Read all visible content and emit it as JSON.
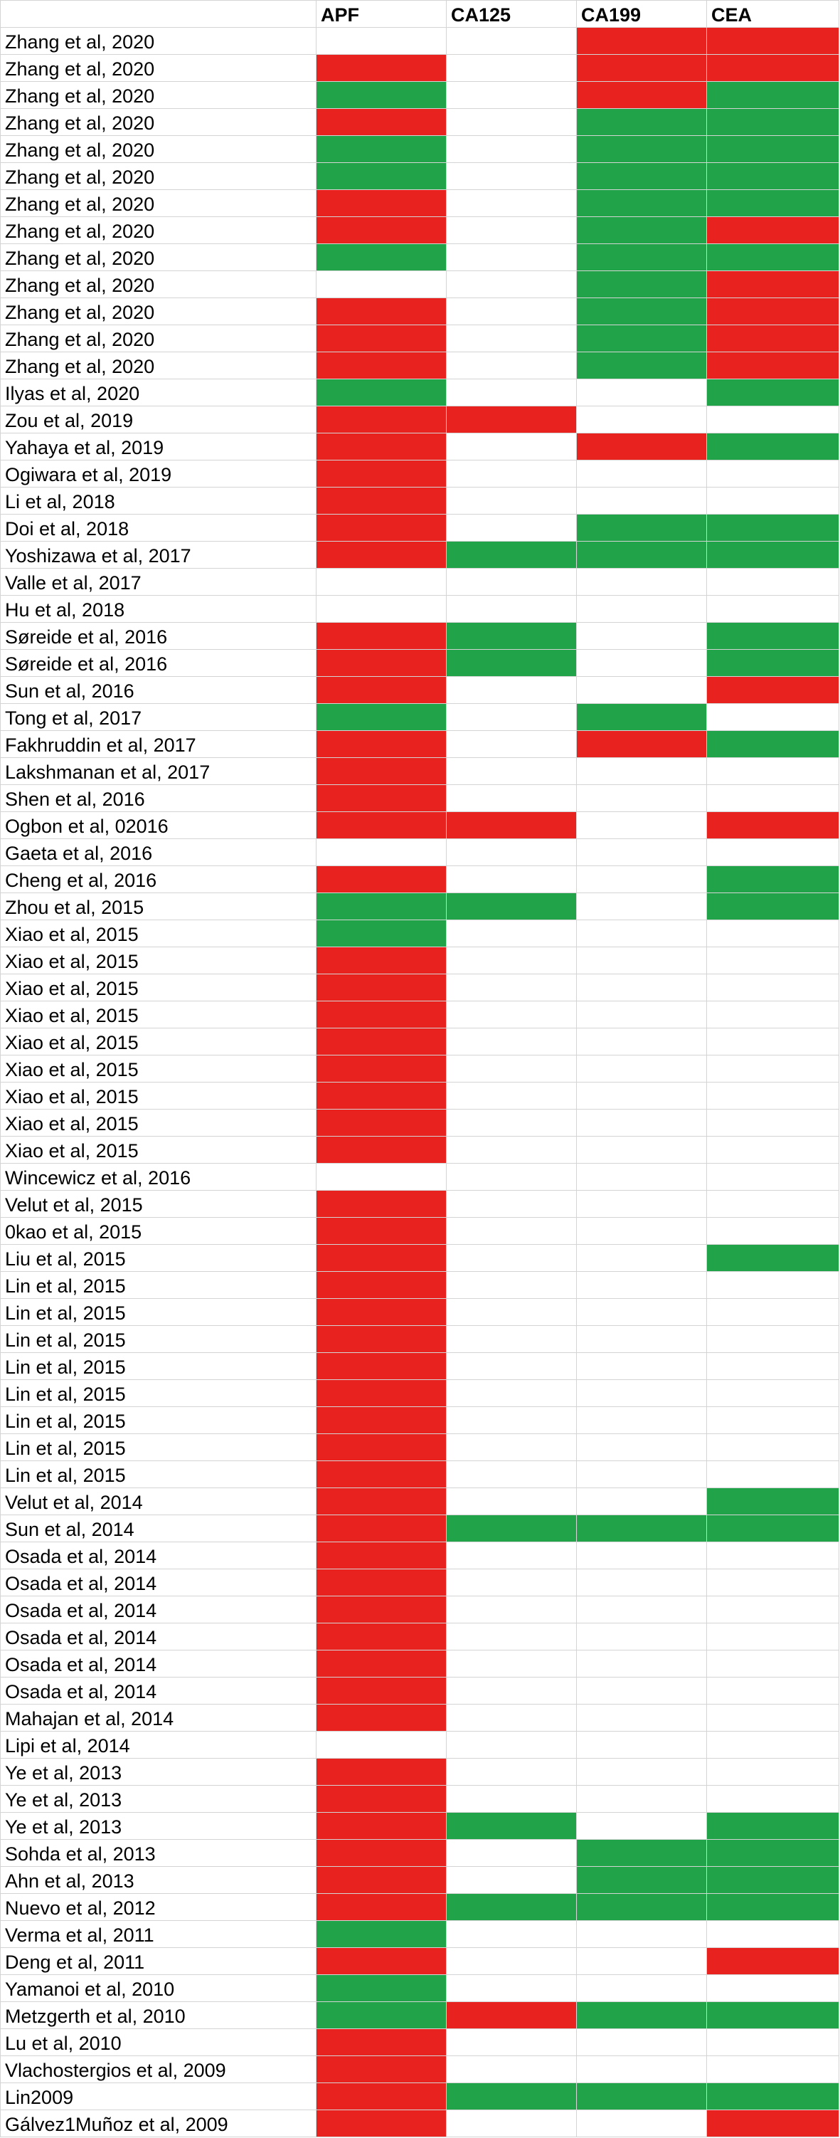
{
  "headers": [
    "",
    "APF",
    "CA125",
    "CA199",
    "CEA"
  ],
  "colors": {
    "positive": "#21a34a",
    "negative": "#e8221e",
    "none": "#ffffff"
  },
  "rows": [
    {
      "study": "Zhang et al, 2020",
      "cells": [
        "w",
        "w",
        "r",
        "r"
      ]
    },
    {
      "study": "Zhang et al, 2020",
      "cells": [
        "r",
        "w",
        "r",
        "r"
      ]
    },
    {
      "study": "Zhang et al, 2020",
      "cells": [
        "g",
        "w",
        "r",
        "g"
      ]
    },
    {
      "study": "Zhang et al, 2020",
      "cells": [
        "r",
        "w",
        "g",
        "g"
      ]
    },
    {
      "study": "Zhang et al, 2020",
      "cells": [
        "g",
        "w",
        "g",
        "g"
      ]
    },
    {
      "study": "Zhang et al, 2020",
      "cells": [
        "g",
        "w",
        "g",
        "g"
      ]
    },
    {
      "study": "Zhang et al, 2020",
      "cells": [
        "r",
        "w",
        "g",
        "g"
      ]
    },
    {
      "study": "Zhang et al, 2020",
      "cells": [
        "r",
        "w",
        "g",
        "r"
      ]
    },
    {
      "study": "Zhang et al, 2020",
      "cells": [
        "g",
        "w",
        "g",
        "g"
      ]
    },
    {
      "study": "Zhang et al, 2020",
      "cells": [
        "w",
        "w",
        "g",
        "r"
      ]
    },
    {
      "study": "Zhang et al, 2020",
      "cells": [
        "r",
        "w",
        "g",
        "r"
      ]
    },
    {
      "study": "Zhang et al, 2020",
      "cells": [
        "r",
        "w",
        "g",
        "r"
      ]
    },
    {
      "study": "Zhang et al, 2020",
      "cells": [
        "r",
        "w",
        "g",
        "r"
      ]
    },
    {
      "study": "Ilyas et al, 2020",
      "cells": [
        "g",
        "w",
        "w",
        "g"
      ]
    },
    {
      "study": "Zou et al, 2019",
      "cells": [
        "r",
        "r",
        "w",
        "w"
      ]
    },
    {
      "study": "Yahaya et al, 2019",
      "cells": [
        "r",
        "w",
        "r",
        "g"
      ]
    },
    {
      "study": "Ogiwara et al, 2019",
      "cells": [
        "r",
        "w",
        "w",
        "w"
      ]
    },
    {
      "study": "Li et al, 2018",
      "cells": [
        "r",
        "w",
        "w",
        "w"
      ]
    },
    {
      "study": "Doi et al, 2018",
      "cells": [
        "r",
        "w",
        "g",
        "g"
      ]
    },
    {
      "study": "Yoshizawa et al, 2017",
      "cells": [
        "r",
        "g",
        "g",
        "g"
      ]
    },
    {
      "study": "Valle et al, 2017",
      "cells": [
        "w",
        "w",
        "w",
        "w"
      ]
    },
    {
      "study": "Hu et al, 2018",
      "cells": [
        "w",
        "w",
        "w",
        "w"
      ]
    },
    {
      "study": "Søreide et al, 2016",
      "cells": [
        "r",
        "g",
        "w",
        "g"
      ]
    },
    {
      "study": "Søreide et al, 2016",
      "cells": [
        "r",
        "g",
        "w",
        "g"
      ]
    },
    {
      "study": "Sun et al, 2016",
      "cells": [
        "r",
        "w",
        "w",
        "r"
      ]
    },
    {
      "study": "Tong et al, 2017",
      "cells": [
        "g",
        "w",
        "g",
        "w"
      ]
    },
    {
      "study": "Fakhruddin et al, 2017",
      "cells": [
        "r",
        "w",
        "r",
        "g"
      ]
    },
    {
      "study": "Lakshmanan et al, 2017",
      "cells": [
        "r",
        "w",
        "w",
        "w"
      ]
    },
    {
      "study": "Shen et al, 2016",
      "cells": [
        "r",
        "w",
        "w",
        "w"
      ]
    },
    {
      "study": "Ogbon et al, 02016",
      "cells": [
        "r",
        "r",
        "w",
        "r"
      ]
    },
    {
      "study": "Gaeta et al, 2016",
      "cells": [
        "w",
        "w",
        "w",
        "w"
      ]
    },
    {
      "study": "Cheng et al, 2016",
      "cells": [
        "r",
        "w",
        "w",
        "g"
      ]
    },
    {
      "study": "Zhou et al, 2015",
      "cells": [
        "g",
        "g",
        "w",
        "g"
      ]
    },
    {
      "study": "Xiao et al, 2015",
      "cells": [
        "g",
        "w",
        "w",
        "w"
      ]
    },
    {
      "study": "Xiao et al, 2015",
      "cells": [
        "r",
        "w",
        "w",
        "w"
      ]
    },
    {
      "study": "Xiao et al, 2015",
      "cells": [
        "r",
        "w",
        "w",
        "w"
      ]
    },
    {
      "study": "Xiao et al, 2015",
      "cells": [
        "r",
        "w",
        "w",
        "w"
      ]
    },
    {
      "study": "Xiao et al, 2015",
      "cells": [
        "r",
        "w",
        "w",
        "w"
      ]
    },
    {
      "study": "Xiao et al, 2015",
      "cells": [
        "r",
        "w",
        "w",
        "w"
      ]
    },
    {
      "study": "Xiao et al, 2015",
      "cells": [
        "r",
        "w",
        "w",
        "w"
      ]
    },
    {
      "study": "Xiao et al, 2015",
      "cells": [
        "r",
        "w",
        "w",
        "w"
      ]
    },
    {
      "study": "Xiao et al, 2015",
      "cells": [
        "r",
        "w",
        "w",
        "w"
      ]
    },
    {
      "study": "Wincewicz et al, 2016",
      "cells": [
        "w",
        "w",
        "w",
        "w"
      ]
    },
    {
      "study": "Velut et al, 2015",
      "cells": [
        "r",
        "w",
        "w",
        "w"
      ]
    },
    {
      "study": "0kao et al, 2015",
      "cells": [
        "r",
        "w",
        "w",
        "w"
      ]
    },
    {
      "study": "Liu et al, 2015",
      "cells": [
        "r",
        "w",
        "w",
        "g"
      ]
    },
    {
      "study": "Lin et al, 2015",
      "cells": [
        "r",
        "w",
        "w",
        "w"
      ]
    },
    {
      "study": "Lin et al, 2015",
      "cells": [
        "r",
        "w",
        "w",
        "w"
      ]
    },
    {
      "study": "Lin et al, 2015",
      "cells": [
        "r",
        "w",
        "w",
        "w"
      ]
    },
    {
      "study": "Lin et al, 2015",
      "cells": [
        "r",
        "w",
        "w",
        "w"
      ]
    },
    {
      "study": "Lin et al, 2015",
      "cells": [
        "r",
        "w",
        "w",
        "w"
      ]
    },
    {
      "study": "Lin et al, 2015",
      "cells": [
        "r",
        "w",
        "w",
        "w"
      ]
    },
    {
      "study": "Lin et al, 2015",
      "cells": [
        "r",
        "w",
        "w",
        "w"
      ]
    },
    {
      "study": "Lin et al, 2015",
      "cells": [
        "r",
        "w",
        "w",
        "w"
      ]
    },
    {
      "study": "Velut et al, 2014",
      "cells": [
        "r",
        "w",
        "w",
        "g"
      ]
    },
    {
      "study": "Sun et al, 2014",
      "cells": [
        "r",
        "g",
        "g",
        "g"
      ]
    },
    {
      "study": "Osada et al, 2014",
      "cells": [
        "r",
        "w",
        "w",
        "w"
      ]
    },
    {
      "study": "Osada et al, 2014",
      "cells": [
        "r",
        "w",
        "w",
        "w"
      ]
    },
    {
      "study": "Osada et al, 2014",
      "cells": [
        "r",
        "w",
        "w",
        "w"
      ]
    },
    {
      "study": "Osada et al, 2014",
      "cells": [
        "r",
        "w",
        "w",
        "w"
      ]
    },
    {
      "study": "Osada et al, 2014",
      "cells": [
        "r",
        "w",
        "w",
        "w"
      ]
    },
    {
      "study": "Osada et al, 2014",
      "cells": [
        "r",
        "w",
        "w",
        "w"
      ]
    },
    {
      "study": "Mahajan et al, 2014",
      "cells": [
        "r",
        "w",
        "w",
        "w"
      ]
    },
    {
      "study": "Lipi et al, 2014",
      "cells": [
        "w",
        "w",
        "w",
        "w"
      ]
    },
    {
      "study": "Ye et al, 2013",
      "cells": [
        "r",
        "w",
        "w",
        "w"
      ]
    },
    {
      "study": "Ye et al, 2013",
      "cells": [
        "r",
        "w",
        "w",
        "w"
      ]
    },
    {
      "study": "Ye et al, 2013",
      "cells": [
        "r",
        "g",
        "w",
        "g"
      ]
    },
    {
      "study": "Sohda et al, 2013",
      "cells": [
        "r",
        "w",
        "g",
        "g"
      ]
    },
    {
      "study": "Ahn et al, 2013",
      "cells": [
        "r",
        "w",
        "g",
        "g"
      ]
    },
    {
      "study": "Nuevo et al, 2012",
      "cells": [
        "r",
        "g",
        "g",
        "g"
      ]
    },
    {
      "study": "Verma et al, 2011",
      "cells": [
        "g",
        "w",
        "w",
        "w"
      ]
    },
    {
      "study": "Deng et al, 2011",
      "cells": [
        "r",
        "w",
        "w",
        "r"
      ]
    },
    {
      "study": "Yamanoi et al, 2010",
      "cells": [
        "g",
        "w",
        "w",
        "w"
      ]
    },
    {
      "study": "Metzgerth et al, 2010",
      "cells": [
        "g",
        "r",
        "g",
        "g"
      ]
    },
    {
      "study": "Lu et al, 2010",
      "cells": [
        "r",
        "w",
        "w",
        "w"
      ]
    },
    {
      "study": "Vlachostergios et al, 2009",
      "cells": [
        "r",
        "w",
        "w",
        "w"
      ]
    },
    {
      "study": "Lin2009",
      "cells": [
        "r",
        "g",
        "g",
        "g"
      ]
    },
    {
      "study": "Gálvez1Muñoz et al, 2009",
      "cells": [
        "r",
        "w",
        "w",
        "r"
      ]
    }
  ]
}
